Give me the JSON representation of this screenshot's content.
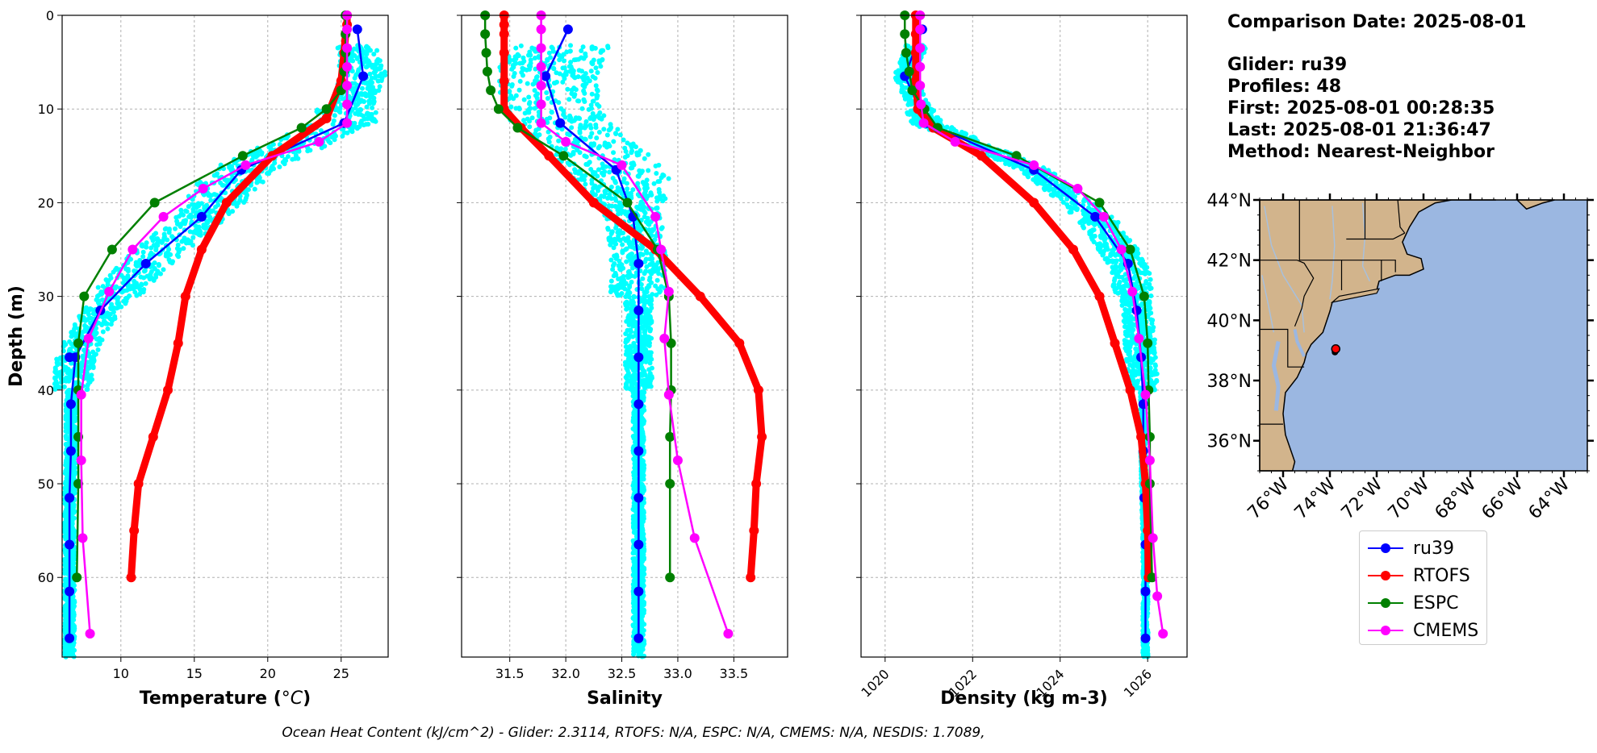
{
  "info": {
    "comparison": "Comparison Date: 2025-08-01",
    "glider": "Glider: ru39",
    "profiles": "Profiles: 48",
    "first": "First: 2025-08-01 00:28:35",
    "last": "Last: 2025-08-01 21:36:47",
    "method": "Method: Nearest-Neighbor"
  },
  "footer": "Ocean Heat Content (kJ/cm^2) - Glider: 2.3114,  RTOFS: N/A,  ESPC: N/A,  CMEMS: N/A,  NESDIS: 1.7089,",
  "colors": {
    "ru39": "#0000ff",
    "RTOFS": "#ff0000",
    "ESPC": "#008000",
    "CMEMS": "#ff00ff",
    "scatter": "#00ffff",
    "land": "#d2b48c",
    "ocean": "#9bb7e1",
    "rivers": "#a8c0dc"
  },
  "legend": [
    {
      "name": "ru39",
      "color": "#0000ff"
    },
    {
      "name": "RTOFS",
      "color": "#ff0000"
    },
    {
      "name": "ESPC",
      "color": "#008000"
    },
    {
      "name": "CMEMS",
      "color": "#ff00ff"
    }
  ],
  "chart_data": [
    {
      "type": "line",
      "id": "temperature",
      "xlabel": "Temperature (°C)",
      "ylabel": "Depth (m)",
      "xlim": [
        6,
        28.2
      ],
      "ylim": [
        68.5,
        0
      ],
      "xticks": [
        10,
        15,
        20,
        25
      ],
      "yticks": [
        0,
        10,
        20,
        30,
        40,
        50,
        60
      ],
      "grid": true,
      "series": [
        {
          "name": "ru39",
          "color": "#0000ff",
          "x": [
            26.1,
            26.5,
            25.2,
            18.2,
            15.5,
            11.7,
            8.6,
            6.9,
            6.6,
            6.6,
            6.5,
            6.5,
            6.5,
            6.5,
            6.5,
            6.5
          ],
          "y": [
            1.5,
            6.5,
            11.5,
            16.5,
            21.5,
            26.5,
            31.5,
            36.5,
            41.5,
            46.5,
            51.5,
            56.5,
            61.5,
            66.5,
            36.5,
            51.5
          ]
        },
        {
          "name": "RTOFS",
          "color": "#ff0000",
          "x": [
            25.4,
            25.4,
            25.3,
            25.2,
            25.0,
            24.0,
            20.3,
            17.2,
            15.5,
            14.4,
            13.9,
            13.2,
            12.2,
            11.2,
            10.9,
            10.7
          ],
          "y": [
            0,
            1,
            2,
            4,
            7,
            11,
            15,
            20,
            25,
            30,
            35,
            40,
            45,
            50,
            55,
            60
          ]
        },
        {
          "name": "ESPC",
          "color": "#008000",
          "x": [
            25.3,
            25.3,
            25.3,
            25.2,
            25.0,
            24.0,
            22.3,
            18.3,
            12.3,
            9.4,
            7.5,
            7.1,
            7.1,
            7.1,
            7.1,
            7.0
          ],
          "y": [
            0,
            2,
            4,
            6,
            8,
            10,
            12,
            15,
            20,
            25,
            30,
            35,
            40,
            45,
            50,
            60
          ]
        },
        {
          "name": "CMEMS",
          "color": "#ff00ff",
          "x": [
            25.4,
            25.4,
            25.4,
            25.4,
            25.4,
            25.4,
            25.4,
            23.5,
            18.5,
            15.6,
            12.9,
            10.8,
            9.2,
            7.8,
            7.3,
            7.3,
            7.4,
            7.9
          ],
          "y": [
            0,
            1.5,
            3.5,
            5.5,
            7.5,
            9.5,
            11.5,
            13.5,
            16,
            18.5,
            21.5,
            25,
            29.5,
            34.5,
            40.5,
            47.5,
            55.8,
            66
          ]
        }
      ]
    },
    {
      "type": "line",
      "id": "salinity",
      "xlabel": "Salinity",
      "xlim": [
        31.07,
        33.98
      ],
      "ylim": [
        68.5,
        0
      ],
      "xticks": [
        31.5,
        32.0,
        32.5,
        33.0,
        33.5
      ],
      "xticklabels": [
        "31.5",
        "32.0",
        "32.5",
        "33.0",
        "33.5"
      ],
      "grid": true,
      "series": [
        {
          "name": "ru39",
          "color": "#0000ff",
          "x": [
            32.02,
            31.82,
            31.95,
            32.45,
            32.6,
            32.65,
            32.65,
            32.65,
            32.65,
            32.65,
            32.65,
            32.65,
            32.65,
            32.65
          ],
          "y": [
            1.5,
            6.5,
            11.5,
            16.5,
            21.5,
            26.5,
            31.5,
            36.5,
            41.5,
            46.5,
            51.5,
            56.5,
            61.5,
            66.5
          ]
        },
        {
          "name": "RTOFS",
          "color": "#ff0000",
          "x": [
            31.45,
            31.45,
            31.45,
            31.45,
            31.45,
            31.45,
            31.6,
            31.85,
            32.25,
            32.8,
            33.2,
            33.55,
            33.72,
            33.75,
            33.7,
            33.68,
            33.65
          ],
          "y": [
            0,
            1,
            2,
            4,
            7,
            10,
            12,
            15,
            20,
            25,
            30,
            35,
            40,
            45,
            50,
            55,
            60
          ]
        },
        {
          "name": "ESPC",
          "color": "#008000",
          "x": [
            31.28,
            31.28,
            31.29,
            31.3,
            31.33,
            31.4,
            31.57,
            31.98,
            32.55,
            32.82,
            32.92,
            32.94,
            32.94,
            32.93,
            32.93,
            32.93
          ],
          "y": [
            0,
            2,
            4,
            6,
            8,
            10,
            12,
            15,
            20,
            25,
            30,
            35,
            40,
            45,
            50,
            60
          ]
        },
        {
          "name": "CMEMS",
          "color": "#ff00ff",
          "x": [
            31.78,
            31.78,
            31.78,
            31.78,
            31.78,
            31.78,
            31.78,
            32.0,
            32.5,
            32.8,
            32.85,
            32.92,
            32.88,
            32.92,
            33.0,
            33.15,
            33.45
          ],
          "y": [
            0,
            1.5,
            3.5,
            5.5,
            7.5,
            9.5,
            11.5,
            13.5,
            16,
            21.5,
            25,
            29.5,
            34.5,
            40.5,
            47.5,
            55.8,
            66
          ]
        }
      ]
    },
    {
      "type": "line",
      "id": "density",
      "xlabel": "Density (kg m-3)",
      "xlim": [
        1019.45,
        1026.9
      ],
      "ylim": [
        68.5,
        0
      ],
      "xticks": [
        1020,
        1022,
        1024,
        1026
      ],
      "grid": true,
      "series": [
        {
          "name": "ru39",
          "color": "#0000ff",
          "x": [
            1020.85,
            1020.45,
            1020.95,
            1023.4,
            1024.8,
            1025.55,
            1025.75,
            1025.85,
            1025.9,
            1025.9,
            1025.92,
            1025.95,
            1025.95,
            1025.95
          ],
          "y": [
            1.5,
            6.5,
            11.5,
            16.5,
            21.5,
            26.5,
            31.5,
            36.5,
            41.5,
            46.5,
            51.5,
            56.5,
            61.5,
            66.5
          ]
        },
        {
          "name": "RTOFS",
          "color": "#ff0000",
          "x": [
            1020.7,
            1020.7,
            1020.7,
            1020.7,
            1020.75,
            1021.1,
            1022.2,
            1023.4,
            1024.3,
            1024.9,
            1025.25,
            1025.6,
            1025.85,
            1025.95,
            1026.0,
            1026.02
          ],
          "y": [
            0,
            2,
            4,
            7,
            10,
            12,
            15,
            20,
            25,
            30,
            35,
            40,
            45,
            50,
            55,
            60
          ]
        },
        {
          "name": "ESPC",
          "color": "#008000",
          "x": [
            1020.45,
            1020.45,
            1020.48,
            1020.55,
            1020.62,
            1020.9,
            1021.2,
            1023.0,
            1024.9,
            1025.6,
            1025.92,
            1026.0,
            1026.02,
            1026.05,
            1026.05,
            1026.1
          ],
          "y": [
            0,
            2,
            4,
            6,
            8,
            10,
            12,
            15,
            20,
            25,
            30,
            35,
            40,
            45,
            50,
            60
          ]
        },
        {
          "name": "CMEMS",
          "color": "#ff00ff",
          "x": [
            1020.8,
            1020.8,
            1020.8,
            1020.8,
            1020.8,
            1020.82,
            1020.88,
            1021.6,
            1023.4,
            1024.4,
            1025.0,
            1025.4,
            1025.65,
            1025.8,
            1025.95,
            1026.05,
            1026.12,
            1026.22,
            1026.35
          ],
          "y": [
            0,
            1.5,
            3.5,
            5.5,
            7.5,
            9.5,
            11.5,
            13.5,
            16,
            18.5,
            21.5,
            25,
            29.5,
            34.5,
            40.5,
            47.5,
            55.8,
            62,
            66
          ]
        }
      ]
    },
    {
      "type": "map",
      "id": "location-map",
      "lon_range": [
        -77.0,
        -63.0
      ],
      "lat_range": [
        35.0,
        44.0
      ],
      "lon_ticks": [
        -76,
        -74,
        -72,
        -70,
        -68,
        -66,
        -64
      ],
      "lon_labels": [
        "76°W",
        "74°W",
        "72°W",
        "70°W",
        "68°W",
        "66°W",
        "64°W"
      ],
      "lat_ticks": [
        36,
        38,
        40,
        42,
        44
      ],
      "lat_labels": [
        "36°N",
        "38°N",
        "40°N",
        "42°N",
        "44°N"
      ],
      "glider_position": {
        "lon": -73.75,
        "lat": 39.05
      }
    }
  ]
}
